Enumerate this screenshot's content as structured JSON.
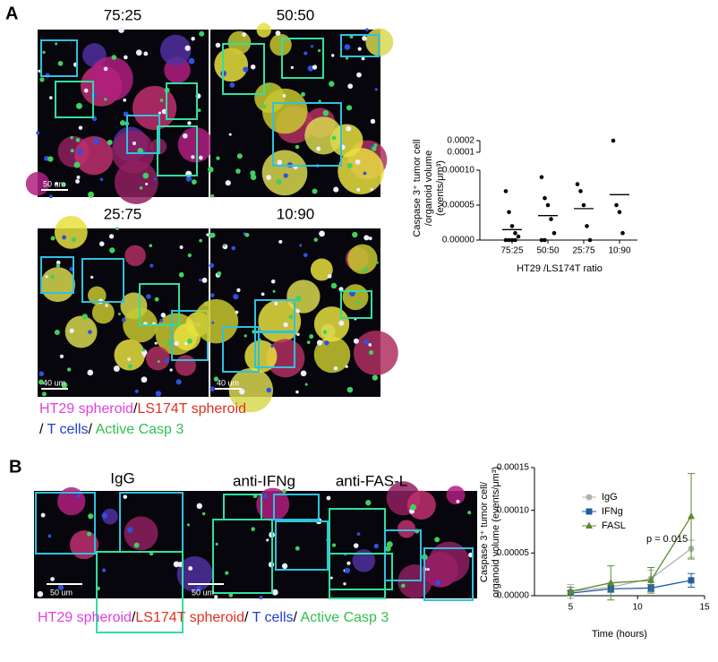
{
  "panel_a": {
    "label": "A",
    "images": [
      {
        "title": "75:25",
        "scale_bar": "50 um"
      },
      {
        "title": "50:50"
      },
      {
        "title": "25:75",
        "scale_bar": "40 um"
      },
      {
        "title": "10:90",
        "scale_bar": "40 um"
      }
    ],
    "legend": [
      [
        {
          "text": "HT29 spheroid",
          "color": "#e040e0"
        },
        {
          "text": "/",
          "color": "#000000"
        },
        {
          "text": "LS174T spheroid",
          "color": "#e03020"
        }
      ],
      [
        {
          "text": "/ ",
          "color": "#000000"
        },
        {
          "text": "T cells",
          "color": "#2040d0"
        },
        {
          "text": "/ ",
          "color": "#000000"
        },
        {
          "text": "Active Casp 3",
          "color": "#30c050"
        }
      ]
    ]
  },
  "panel_b": {
    "label": "B",
    "titles": [
      "IgG",
      "anti-IFNg",
      "anti-FAS-L"
    ],
    "scale_bars": [
      "50 um",
      "50 um"
    ],
    "legend": [
      {
        "text": "HT29 spheroid",
        "color": "#e040e0"
      },
      {
        "text": "/",
        "color": "#000000"
      },
      {
        "text": "LS174T spheroid",
        "color": "#e03020"
      },
      {
        "text": "/ ",
        "color": "#000000"
      },
      {
        "text": "T cells",
        "color": "#2040d0"
      },
      {
        "text": "/ ",
        "color": "#000000"
      },
      {
        "text": "Active Casp 3",
        "color": "#30c050"
      }
    ]
  },
  "chart_data": [
    {
      "type": "dot",
      "categories": [
        "75:25",
        "50:50",
        "25:75",
        "10:90"
      ],
      "values": [
        [
          7e-05,
          4e-05,
          2e-05,
          1e-05,
          5e-06,
          0,
          0,
          0,
          0
        ],
        [
          9e-05,
          6e-05,
          5e-05,
          3e-05,
          1e-05,
          0,
          0
        ],
        [
          8e-05,
          7e-05,
          5e-05,
          2e-05,
          0
        ],
        [
          0.0002,
          5e-05,
          4e-05,
          1e-05
        ]
      ],
      "means": [
        1.5e-05,
        3.5e-05,
        4.5e-05,
        6.5e-05
      ],
      "color": "#000000",
      "ylim": [
        0,
        0.0001
      ],
      "yticks": [
        {
          "value": 0,
          "label": "0.00000"
        },
        {
          "value": 5e-05,
          "label": "0.00005"
        },
        {
          "value": 0.0001,
          "label": "0.00010"
        }
      ],
      "ylim_upper": [
        0.0001,
        0.0002
      ],
      "yticks_upper": [
        0.0001,
        0.0002
      ],
      "ylabel": [
        "Caspase 3⁺ tumor cell",
        "/organoid volume",
        "(events/μm³)"
      ],
      "xlabel": "HT29 /LS174T ratio"
    },
    {
      "type": "line",
      "x": [
        5,
        8,
        11,
        14
      ],
      "xlim": [
        2.3,
        15
      ],
      "xticks": [
        5,
        10,
        15
      ],
      "ylim": [
        0,
        0.00015
      ],
      "yticks": [
        {
          "value": 0,
          "label": "0.00000"
        },
        {
          "value": 5e-05,
          "label": "0.00005"
        },
        {
          "value": 0.0001,
          "label": "0.00010"
        },
        {
          "value": 0.00015,
          "label": "0.00015"
        }
      ],
      "series": [
        {
          "name": "IgG",
          "color": "#b0b0b0",
          "marker": "circle",
          "values": [
            5e-06,
            1e-05,
            2e-05,
            5.5e-05
          ],
          "errors": [
            8e-06,
            5e-06,
            1e-05,
            1e-05
          ]
        },
        {
          "name": "IFNg",
          "color": "#1f5fa0",
          "marker": "square",
          "values": [
            3e-06,
            8e-06,
            9e-06,
            1.8e-05
          ],
          "errors": [
            3e-06,
            4e-06,
            4e-06,
            8e-06
          ]
        },
        {
          "name": "FASL",
          "color": "#5b8a2e",
          "marker": "triangle",
          "values": [
            5e-06,
            1.5e-05,
            1.8e-05,
            9.3e-05
          ],
          "errors": [
            5e-06,
            2e-05,
            1.5e-05,
            5e-05
          ]
        }
      ],
      "annotation": "p = 0.015",
      "legend": "upper-left",
      "ylabel": [
        "Caspase 3⁺ tumor cell/",
        "organoid volume (events/μm³)"
      ],
      "xlabel": "Time (hours)"
    }
  ]
}
